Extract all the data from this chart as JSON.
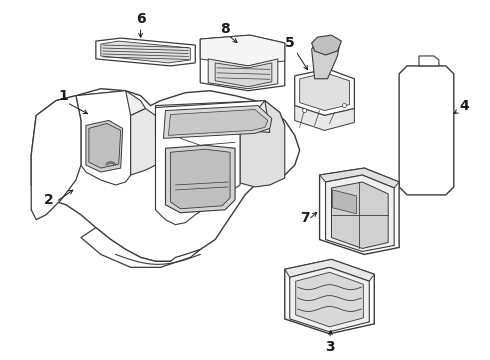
{
  "bg_color": "#ffffff",
  "lc": "#3a3a3a",
  "tc": "#1a1a1a",
  "fig_w": 4.9,
  "fig_h": 3.6,
  "dpi": 100,
  "lw": 0.9,
  "font_size": 10
}
